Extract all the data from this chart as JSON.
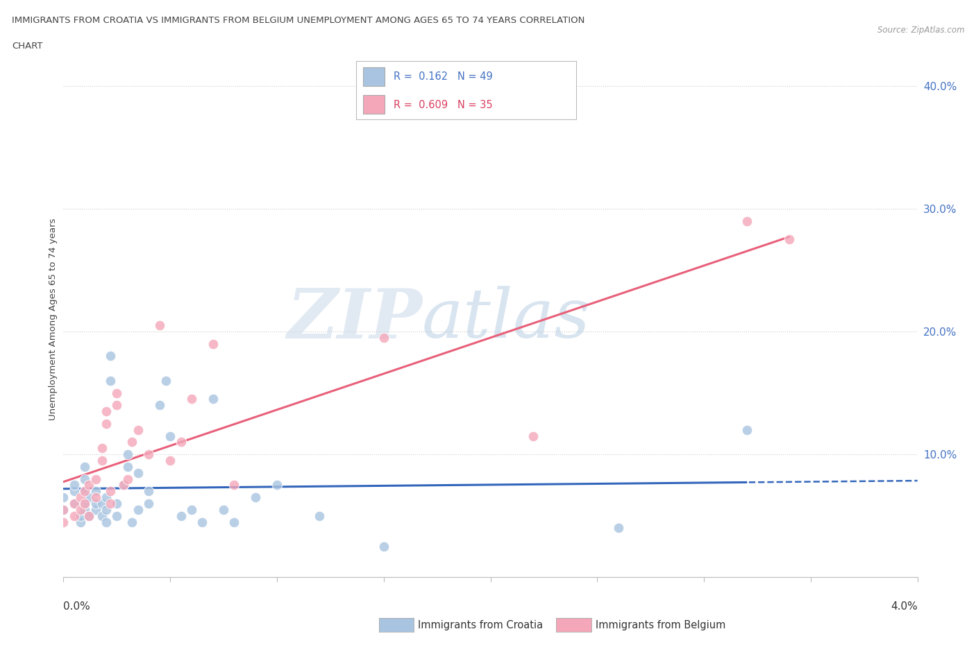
{
  "title_line1": "IMMIGRANTS FROM CROATIA VS IMMIGRANTS FROM BELGIUM UNEMPLOYMENT AMONG AGES 65 TO 74 YEARS CORRELATION",
  "title_line2": "CHART",
  "source": "Source: ZipAtlas.com",
  "ylabel": "Unemployment Among Ages 65 to 74 years",
  "xlim": [
    0.0,
    4.0
  ],
  "ylim": [
    0.0,
    42.0
  ],
  "croatia_color": "#a8c4e0",
  "belgium_color": "#f4a7b9",
  "croatia_R": 0.162,
  "croatia_N": 49,
  "belgium_R": 0.609,
  "belgium_N": 35,
  "croatia_line_color": "#3366bb",
  "belgium_line_color": "#e8607a",
  "watermark_zip": "ZIP",
  "watermark_atlas": "atlas",
  "croatia_scatter_x": [
    0.0,
    0.0,
    0.05,
    0.05,
    0.05,
    0.08,
    0.08,
    0.1,
    0.1,
    0.1,
    0.1,
    0.1,
    0.12,
    0.12,
    0.15,
    0.15,
    0.15,
    0.18,
    0.18,
    0.2,
    0.2,
    0.2,
    0.22,
    0.22,
    0.25,
    0.25,
    0.28,
    0.3,
    0.3,
    0.32,
    0.35,
    0.35,
    0.4,
    0.4,
    0.45,
    0.48,
    0.5,
    0.55,
    0.6,
    0.65,
    0.7,
    0.75,
    0.8,
    0.9,
    1.0,
    1.2,
    1.5,
    2.6,
    3.2
  ],
  "croatia_scatter_y": [
    5.5,
    6.5,
    6.0,
    7.0,
    7.5,
    4.5,
    5.0,
    5.5,
    6.0,
    7.0,
    8.0,
    9.0,
    5.0,
    6.5,
    5.5,
    6.0,
    7.0,
    5.0,
    6.0,
    4.5,
    5.5,
    6.5,
    16.0,
    18.0,
    5.0,
    6.0,
    7.5,
    9.0,
    10.0,
    4.5,
    5.5,
    8.5,
    7.0,
    6.0,
    14.0,
    16.0,
    11.5,
    5.0,
    5.5,
    4.5,
    14.5,
    5.5,
    4.5,
    6.5,
    7.5,
    5.0,
    2.5,
    4.0,
    12.0
  ],
  "belgium_scatter_x": [
    0.0,
    0.0,
    0.05,
    0.05,
    0.08,
    0.08,
    0.1,
    0.1,
    0.12,
    0.12,
    0.15,
    0.15,
    0.18,
    0.18,
    0.2,
    0.2,
    0.22,
    0.22,
    0.25,
    0.25,
    0.28,
    0.3,
    0.32,
    0.35,
    0.4,
    0.45,
    0.5,
    0.55,
    0.6,
    0.7,
    0.8,
    1.5,
    2.2,
    3.2,
    3.4
  ],
  "belgium_scatter_y": [
    4.5,
    5.5,
    5.0,
    6.0,
    5.5,
    6.5,
    6.0,
    7.0,
    5.0,
    7.5,
    6.5,
    8.0,
    9.5,
    10.5,
    12.5,
    13.5,
    6.0,
    7.0,
    14.0,
    15.0,
    7.5,
    8.0,
    11.0,
    12.0,
    10.0,
    20.5,
    9.5,
    11.0,
    14.5,
    19.0,
    7.5,
    19.5,
    11.5,
    29.0,
    27.5
  ]
}
